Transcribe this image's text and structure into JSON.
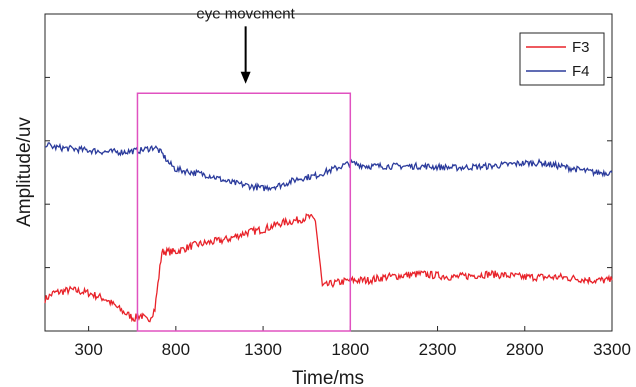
{
  "chart_data": {
    "type": "line",
    "xlabel": "Time/ms",
    "ylabel": "Amplitude/uv",
    "xlim": [
      50,
      3300
    ],
    "ylim": [
      0,
      1
    ],
    "x_ticks": [
      300,
      800,
      1300,
      1800,
      2300,
      2800,
      3300
    ],
    "x_tick_labels": [
      "300",
      "800",
      "1300",
      "1800",
      "2300",
      "2800",
      "3300"
    ],
    "y_tick_labels": [],
    "legend_position": "top-right",
    "grid": false,
    "series": [
      {
        "name": "F3",
        "color": "#e8232a",
        "x": [
          50,
          100,
          200,
          300,
          400,
          500,
          560,
          600,
          640,
          680,
          720,
          760,
          800,
          900,
          1000,
          1100,
          1200,
          1300,
          1400,
          1500,
          1560,
          1600,
          1640,
          1700,
          1800,
          1900,
          2000,
          2200,
          2400,
          2600,
          2800,
          3000,
          3200,
          3300
        ],
        "y": [
          0.1,
          0.12,
          0.13,
          0.12,
          0.1,
          0.06,
          0.04,
          0.05,
          0.03,
          0.07,
          0.25,
          0.25,
          0.25,
          0.27,
          0.28,
          0.29,
          0.31,
          0.32,
          0.34,
          0.35,
          0.36,
          0.35,
          0.14,
          0.15,
          0.16,
          0.16,
          0.17,
          0.18,
          0.17,
          0.18,
          0.17,
          0.17,
          0.16,
          0.16
        ],
        "noise": 0.012
      },
      {
        "name": "F4",
        "color": "#2b3b9c",
        "x": [
          50,
          100,
          200,
          300,
          400,
          500,
          600,
          680,
          720,
          760,
          800,
          900,
          1000,
          1100,
          1200,
          1300,
          1400,
          1500,
          1600,
          1650,
          1700,
          1800,
          1900,
          2000,
          2200,
          2400,
          2600,
          2800,
          2900,
          3000,
          3100,
          3200,
          3300
        ],
        "y": [
          0.59,
          0.58,
          0.575,
          0.57,
          0.565,
          0.565,
          0.57,
          0.58,
          0.56,
          0.53,
          0.51,
          0.5,
          0.49,
          0.47,
          0.46,
          0.45,
          0.46,
          0.48,
          0.49,
          0.5,
          0.51,
          0.53,
          0.52,
          0.52,
          0.52,
          0.515,
          0.52,
          0.53,
          0.53,
          0.52,
          0.51,
          0.5,
          0.5
        ],
        "noise": 0.01
      }
    ],
    "annotations": [
      {
        "type": "box",
        "x_range": [
          580,
          1800
        ],
        "y_range": [
          0.0,
          0.75
        ],
        "color": "#e052c0"
      },
      {
        "type": "arrow",
        "label": "eye movement",
        "x": 1200,
        "y_tail": 0.98,
        "y_head": 0.78
      }
    ]
  }
}
